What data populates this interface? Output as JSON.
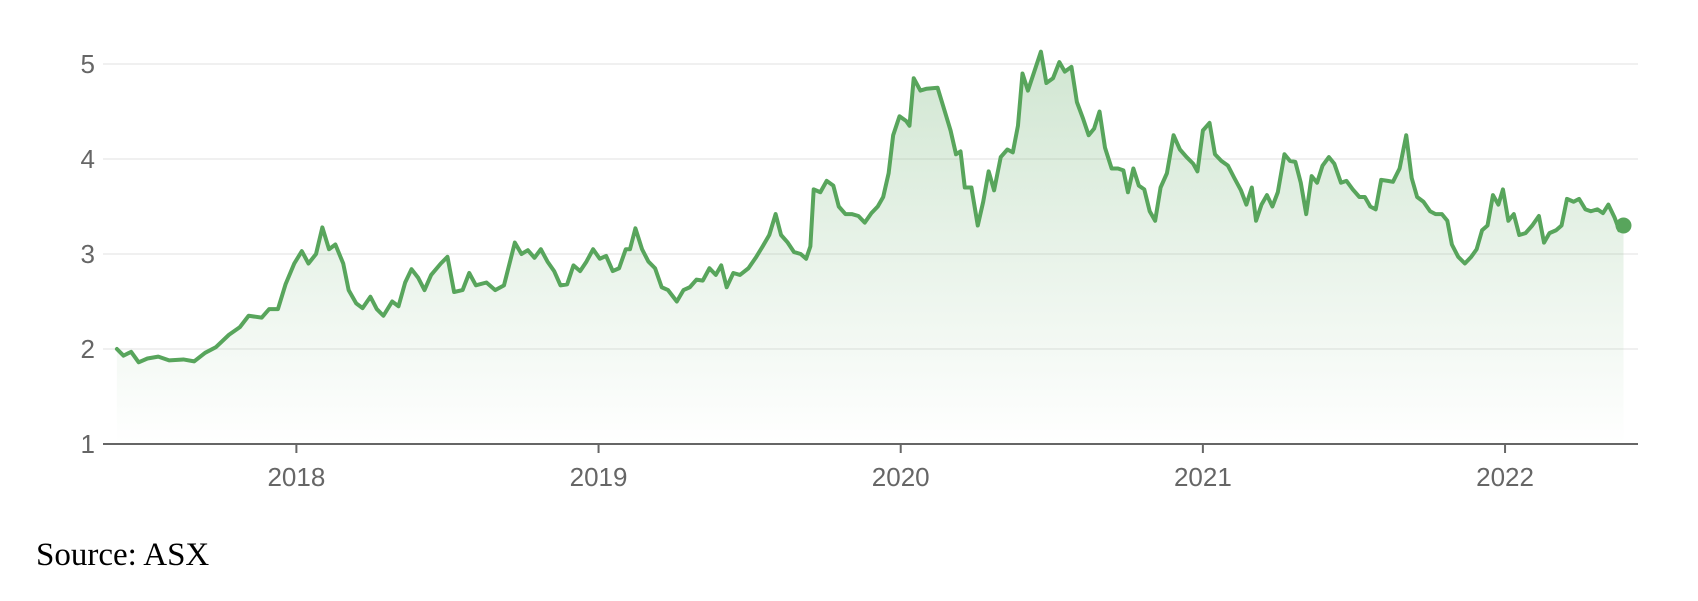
{
  "chart_data": {
    "type": "line",
    "color": "#58a55c",
    "grid": true,
    "xlim": [
      2017.36,
      2022.44
    ],
    "xticks": [
      2018,
      2019,
      2020,
      2021,
      2022
    ],
    "ylim": [
      1,
      5
    ],
    "yticks": [
      1,
      2,
      3,
      4,
      5
    ],
    "x": [
      2017.406,
      2017.428,
      2017.453,
      2017.478,
      2017.507,
      2017.543,
      2017.579,
      2017.626,
      2017.662,
      2017.698,
      2017.734,
      2017.777,
      2017.813,
      2017.842,
      2017.885,
      2017.91,
      2017.939,
      2017.964,
      2017.993,
      2018.018,
      2018.04,
      2018.065,
      2018.086,
      2018.108,
      2018.129,
      2018.155,
      2018.173,
      2018.198,
      2018.219,
      2018.245,
      2018.266,
      2018.288,
      2018.317,
      2018.338,
      2018.36,
      2018.381,
      2018.403,
      2018.424,
      2018.446,
      2018.478,
      2018.5,
      2018.522,
      2018.55,
      2018.572,
      2018.594,
      2018.629,
      2018.658,
      2018.687,
      2018.723,
      2018.745,
      2018.766,
      2018.788,
      2018.809,
      2018.831,
      2018.853,
      2018.874,
      2018.896,
      2018.917,
      2018.939,
      2018.96,
      2018.982,
      2019.004,
      2019.025,
      2019.047,
      2019.068,
      2019.09,
      2019.104,
      2019.122,
      2019.144,
      2019.165,
      2019.187,
      2019.209,
      2019.23,
      2019.259,
      2019.281,
      2019.302,
      2019.324,
      2019.345,
      2019.367,
      2019.388,
      2019.406,
      2019.424,
      2019.446,
      2019.468,
      2019.496,
      2019.522,
      2019.543,
      2019.565,
      2019.586,
      2019.604,
      2019.626,
      2019.647,
      2019.669,
      2019.687,
      2019.701,
      2019.712,
      2019.734,
      2019.755,
      2019.777,
      2019.795,
      2019.817,
      2019.838,
      2019.86,
      2019.881,
      2019.903,
      2019.924,
      2019.942,
      2019.96,
      2019.975,
      2019.996,
      2020.018,
      2020.029,
      2020.043,
      2020.065,
      2020.086,
      2020.122,
      2020.144,
      2020.165,
      2020.183,
      2020.198,
      2020.212,
      2020.234,
      2020.255,
      2020.273,
      2020.291,
      2020.309,
      2020.331,
      2020.353,
      2020.371,
      2020.388,
      2020.403,
      2020.421,
      2020.442,
      2020.464,
      2020.482,
      2020.504,
      2020.525,
      2020.543,
      2020.565,
      2020.583,
      2020.604,
      2020.622,
      2020.64,
      2020.658,
      2020.676,
      2020.698,
      2020.719,
      2020.737,
      2020.752,
      2020.77,
      2020.788,
      2020.806,
      2020.824,
      2020.842,
      2020.86,
      2020.881,
      2020.903,
      2020.924,
      2020.946,
      2020.968,
      2020.982,
      2021.0,
      2021.022,
      2021.04,
      2021.061,
      2021.083,
      2021.104,
      2021.126,
      2021.144,
      2021.162,
      2021.176,
      2021.194,
      2021.212,
      2021.23,
      2021.248,
      2021.27,
      2021.288,
      2021.306,
      2021.324,
      2021.342,
      2021.36,
      2021.378,
      2021.396,
      2021.417,
      2021.435,
      2021.457,
      2021.475,
      2021.496,
      2021.518,
      2021.536,
      2021.554,
      2021.572,
      2021.59,
      2021.612,
      2021.629,
      2021.651,
      2021.673,
      2021.691,
      2021.709,
      2021.73,
      2021.752,
      2021.77,
      2021.791,
      2021.809,
      2021.824,
      2021.845,
      2021.867,
      2021.888,
      2021.906,
      2021.924,
      2021.942,
      2021.96,
      2021.978,
      2021.993,
      2022.011,
      2022.029,
      2022.047,
      2022.068,
      2022.09,
      2022.112,
      2022.129,
      2022.147,
      2022.169,
      2022.187,
      2022.205,
      2022.227,
      2022.245,
      2022.266,
      2022.284,
      2022.306,
      2022.324,
      2022.342,
      2022.363,
      2022.378,
      2022.392
    ],
    "values": [
      2.0,
      1.93,
      1.97,
      1.86,
      1.9,
      1.92,
      1.88,
      1.89,
      1.87,
      1.96,
      2.02,
      2.15,
      2.23,
      2.35,
      2.33,
      2.42,
      2.42,
      2.68,
      2.9,
      3.03,
      2.9,
      3.0,
      3.28,
      3.05,
      3.1,
      2.9,
      2.62,
      2.48,
      2.43,
      2.55,
      2.42,
      2.35,
      2.5,
      2.45,
      2.7,
      2.84,
      2.75,
      2.62,
      2.78,
      2.9,
      2.97,
      2.6,
      2.62,
      2.8,
      2.67,
      2.7,
      2.62,
      2.67,
      3.12,
      3.0,
      3.04,
      2.96,
      3.05,
      2.92,
      2.82,
      2.67,
      2.68,
      2.88,
      2.82,
      2.92,
      3.05,
      2.95,
      2.98,
      2.82,
      2.85,
      3.05,
      3.05,
      3.27,
      3.05,
      2.92,
      2.85,
      2.65,
      2.62,
      2.5,
      2.62,
      2.65,
      2.73,
      2.72,
      2.85,
      2.78,
      2.88,
      2.65,
      2.8,
      2.78,
      2.85,
      2.97,
      3.08,
      3.2,
      3.42,
      3.2,
      3.12,
      3.02,
      3.0,
      2.95,
      3.08,
      3.68,
      3.65,
      3.77,
      3.72,
      3.5,
      3.42,
      3.42,
      3.4,
      3.33,
      3.43,
      3.5,
      3.6,
      3.85,
      4.25,
      4.45,
      4.4,
      4.35,
      4.85,
      4.72,
      4.74,
      4.75,
      4.52,
      4.3,
      4.05,
      4.08,
      3.7,
      3.7,
      3.3,
      3.55,
      3.87,
      3.67,
      4.02,
      4.1,
      4.07,
      4.35,
      4.9,
      4.72,
      4.92,
      5.13,
      4.8,
      4.85,
      5.02,
      4.92,
      4.97,
      4.6,
      4.42,
      4.25,
      4.32,
      4.5,
      4.12,
      3.9,
      3.9,
      3.88,
      3.65,
      3.9,
      3.72,
      3.68,
      3.45,
      3.35,
      3.7,
      3.85,
      4.25,
      4.1,
      4.02,
      3.95,
      3.87,
      4.3,
      4.38,
      4.05,
      3.98,
      3.93,
      3.8,
      3.67,
      3.52,
      3.7,
      3.35,
      3.52,
      3.62,
      3.5,
      3.65,
      4.05,
      3.98,
      3.97,
      3.75,
      3.42,
      3.82,
      3.75,
      3.93,
      4.02,
      3.95,
      3.75,
      3.77,
      3.68,
      3.6,
      3.6,
      3.5,
      3.47,
      3.78,
      3.77,
      3.76,
      3.9,
      4.25,
      3.8,
      3.6,
      3.55,
      3.45,
      3.42,
      3.42,
      3.35,
      3.1,
      2.97,
      2.9,
      2.97,
      3.05,
      3.25,
      3.3,
      3.62,
      3.52,
      3.68,
      3.35,
      3.42,
      3.2,
      3.22,
      3.3,
      3.4,
      3.12,
      3.22,
      3.25,
      3.3,
      3.58,
      3.55,
      3.58,
      3.47,
      3.45,
      3.47,
      3.43,
      3.52,
      3.38,
      3.25,
      3.3
    ]
  },
  "source": "Source: ASX"
}
